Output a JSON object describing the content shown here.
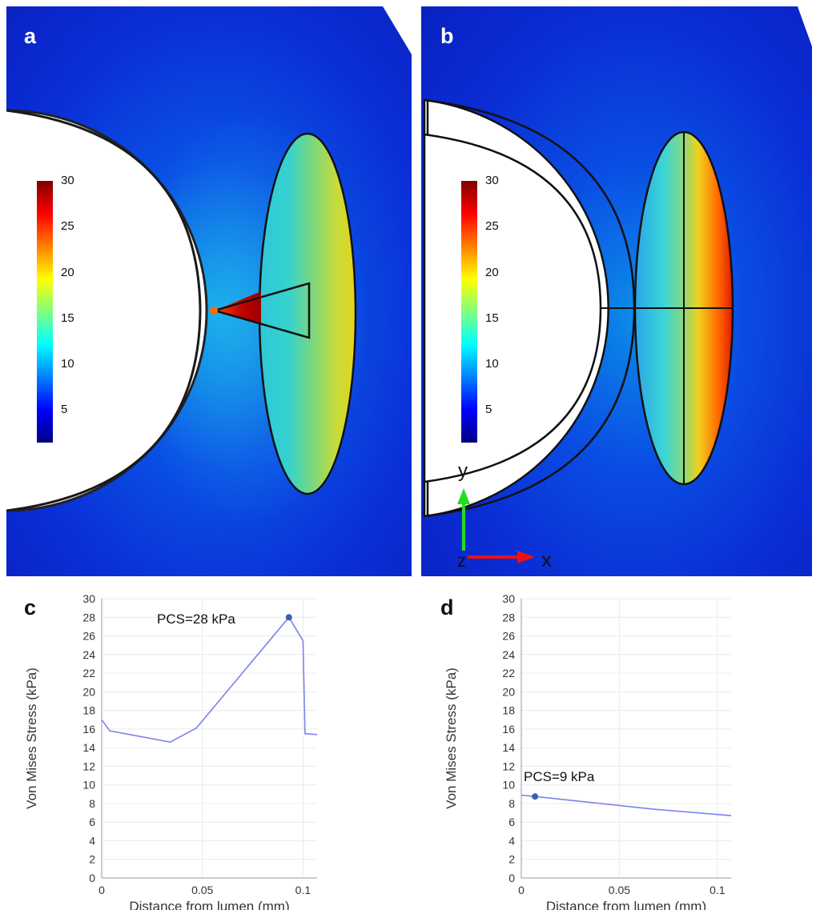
{
  "panels": {
    "a": {
      "letter": "a",
      "colorbar_ticks": [
        "30",
        "25",
        "20",
        "15",
        "10",
        "5"
      ]
    },
    "b": {
      "letter": "b",
      "colorbar_ticks": [
        "30",
        "25",
        "20",
        "15",
        "10",
        "5"
      ],
      "axes_labels": {
        "y": "y",
        "z": "z",
        "x": "x"
      }
    }
  },
  "colors": {
    "background_field": "#0a2bd8",
    "series_line": "#7b83ee",
    "marker": "#3b5fb5",
    "gridline": "#ebebeb"
  },
  "chart_data": [
    {
      "panel": "c",
      "type": "line",
      "ylabel": "Von Mises Stress (kPa)",
      "xlabel": "Distance from lumen (mm)",
      "xlim": [
        0,
        0.107
      ],
      "ylim": [
        0,
        30
      ],
      "x_ticks": [
        0,
        0.05,
        0.1
      ],
      "x_tick_labels": [
        "0",
        "0.05",
        "0.1"
      ],
      "y_ticks": [
        0,
        2,
        4,
        6,
        8,
        10,
        12,
        14,
        16,
        18,
        20,
        22,
        24,
        26,
        28,
        30
      ],
      "y_tick_labels": [
        "0",
        "2",
        "4",
        "6",
        "8",
        "10",
        "12",
        "14",
        "16",
        "18",
        "20",
        "22",
        "24",
        "26",
        "28",
        "30"
      ],
      "points": [
        [
          0,
          17.0
        ],
        [
          0.004,
          15.8
        ],
        [
          0.034,
          14.6
        ],
        [
          0.047,
          16.1
        ],
        [
          0.093,
          28.0
        ],
        [
          0.1,
          25.5
        ],
        [
          0.101,
          15.5
        ],
        [
          0.107,
          15.4
        ]
      ],
      "marker": {
        "x": 0.093,
        "y": 28.0
      },
      "annotation": "PCS=28 kPa"
    },
    {
      "panel": "d",
      "type": "line",
      "ylabel": "Von Mises Stress (kPa)",
      "xlabel": "Distance from lumen (mm)",
      "xlim": [
        0,
        0.107
      ],
      "ylim": [
        0,
        30
      ],
      "x_ticks": [
        0,
        0.05,
        0.1
      ],
      "x_tick_labels": [
        "0",
        "0.05",
        "0.1"
      ],
      "y_ticks": [
        0,
        2,
        4,
        6,
        8,
        10,
        12,
        14,
        16,
        18,
        20,
        22,
        24,
        26,
        28,
        30
      ],
      "y_tick_labels": [
        "0",
        "2",
        "4",
        "6",
        "8",
        "10",
        "12",
        "14",
        "16",
        "18",
        "20",
        "22",
        "24",
        "26",
        "28",
        "30"
      ],
      "points": [
        [
          0,
          8.9
        ],
        [
          0.007,
          8.75
        ],
        [
          0.067,
          7.4
        ],
        [
          0.107,
          6.7
        ]
      ],
      "marker": {
        "x": 0.007,
        "y": 8.75
      },
      "annotation": "PCS=9 kPa"
    }
  ]
}
